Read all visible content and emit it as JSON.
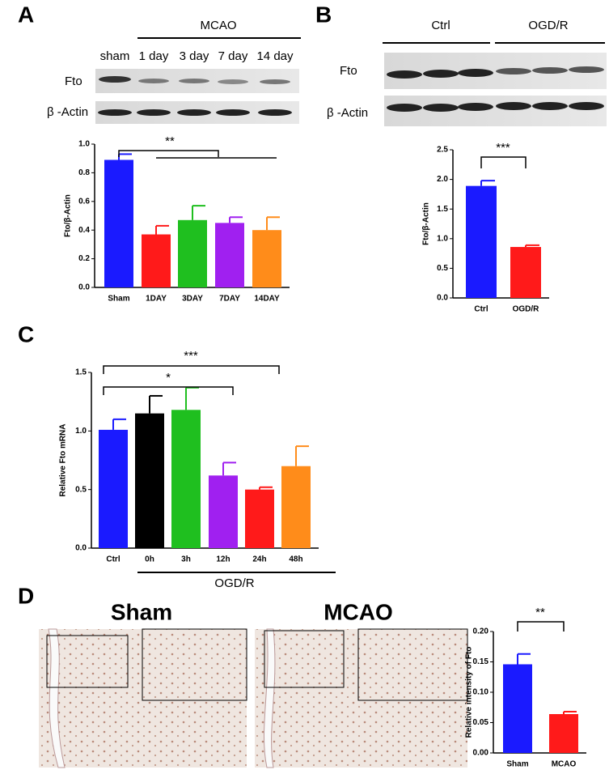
{
  "figure": {
    "panel_labels": [
      "A",
      "B",
      "C",
      "D"
    ],
    "a_group": "MCAO",
    "a_lanes": [
      "sham",
      "1 day",
      "3 day",
      "7 day",
      "14 day"
    ],
    "a_rows": [
      "Fto",
      "β -Actin"
    ],
    "b_groups": [
      "Ctrl",
      "OGD/R"
    ],
    "b_rows": [
      "Fto",
      "β -Actin"
    ],
    "d_images": [
      "Sham",
      "MCAO"
    ]
  },
  "chart_data": [
    {
      "type": "bar",
      "y_label": "Fto/β-Actin",
      "categories": [
        "Sham",
        "1DAY",
        "3DAY",
        "7DAY",
        "14DAY"
      ],
      "values": [
        0.89,
        0.37,
        0.47,
        0.45,
        0.4
      ],
      "errors": [
        0.04,
        0.06,
        0.1,
        0.04,
        0.09
      ],
      "colors": [
        "#1a1aff",
        "#ff1a1a",
        "#1fbf1f",
        "#a020f0",
        "#ff8c1a"
      ],
      "ylim": [
        0,
        1.0
      ],
      "yticks": [
        {
          "value": 0,
          "label": "0.0"
        },
        0.2,
        0.4,
        0.6,
        0.8,
        {
          "value": 1,
          "label": "1.0"
        }
      ],
      "annotations": [
        "**"
      ]
    },
    {
      "type": "bar",
      "y_label": "Fto/β-Actin",
      "categories": [
        "Ctrl",
        "OGD/R"
      ],
      "values": [
        1.89,
        0.86
      ],
      "errors": [
        0.09,
        0.03
      ],
      "colors": [
        "#1a1aff",
        "#ff1a1a"
      ],
      "ylim": [
        0,
        2.5
      ],
      "yticks": [
        {
          "value": 0,
          "label": "0.0"
        },
        0.5,
        {
          "value": 1,
          "label": "1.0"
        },
        1.5,
        {
          "value": 2,
          "label": "2.0"
        },
        2.5
      ],
      "annotations": [
        "***"
      ]
    },
    {
      "type": "bar",
      "y_label": "Relative Fto mRNA",
      "categories": [
        "Ctrl",
        "0h",
        "3h",
        "12h",
        "24h",
        "48h"
      ],
      "values": [
        1.01,
        1.15,
        1.18,
        0.62,
        0.5,
        0.7
      ],
      "errors": [
        0.09,
        0.15,
        0.19,
        0.11,
        0.02,
        0.17
      ],
      "colors": [
        "#1a1aff",
        "#000000",
        "#1fbf1f",
        "#a020f0",
        "#ff1a1a",
        "#ff8c1a"
      ],
      "ylim": [
        0,
        1.5
      ],
      "yticks": [
        {
          "value": 0,
          "label": "0.0"
        },
        0.5,
        {
          "value": 1,
          "label": "1.0"
        },
        1.5
      ],
      "annotations": [
        "***",
        "*"
      ],
      "group_label": "OGD/R"
    },
    {
      "type": "bar",
      "y_label": "Relative intensity of Fto",
      "categories": [
        "Sham",
        "MCAO"
      ],
      "values": [
        0.146,
        0.064
      ],
      "errors": [
        0.017,
        0.004
      ],
      "colors": [
        "#1a1aff",
        "#ff1a1a"
      ],
      "ylim": [
        0,
        0.2
      ],
      "yticks": [
        {
          "value": 0,
          "label": "0.00"
        },
        0.05,
        {
          "value": 0.1,
          "label": "0.10"
        },
        0.15,
        {
          "value": 0.2,
          "label": "0.20"
        }
      ],
      "annotations": [
        "**"
      ]
    }
  ]
}
